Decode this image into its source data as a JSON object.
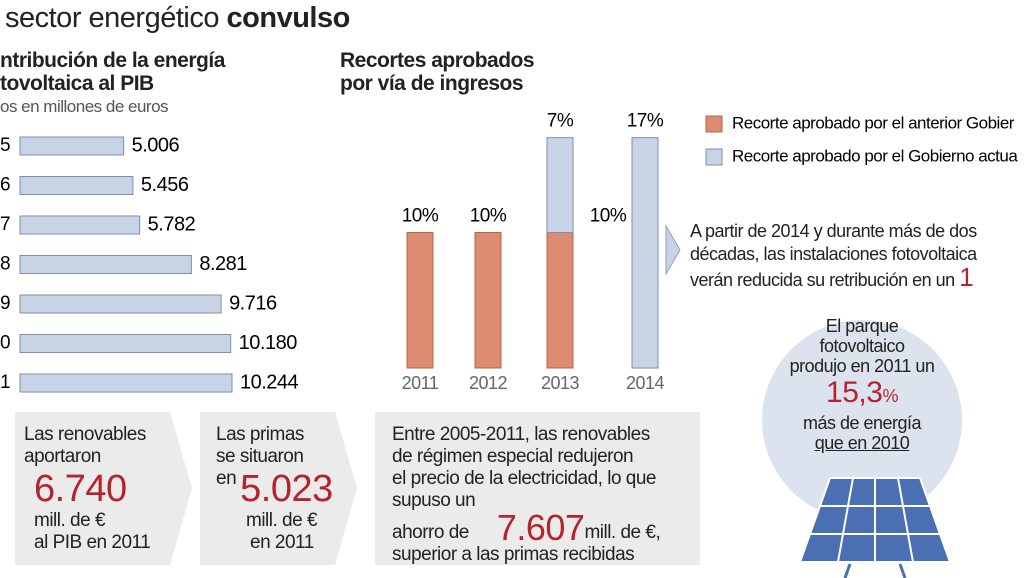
{
  "header": {
    "title": "sector energético",
    "title_bold": "convulso"
  },
  "chart_data": [
    {
      "type": "hbar",
      "title_lines": [
        "ntribución de la energía",
        "tovoltaica al PIB"
      ],
      "subtitle": "os en millones de euros",
      "categories": [
        "5",
        "6",
        "7",
        "8",
        "9",
        "0",
        "1"
      ],
      "values": [
        5006,
        5456,
        5782,
        8281,
        9716,
        10180,
        10244
      ],
      "value_labels": [
        "5.006",
        "5.456",
        "5.782",
        "8.281",
        "9.716",
        "10.180",
        "10.244"
      ],
      "color": "#c9d3e6"
    },
    {
      "type": "stacked-bar",
      "title_lines": [
        "Recortes aprobados",
        "por vía de ingresos"
      ],
      "categories": [
        "2011",
        "2012",
        "2013",
        "2014"
      ],
      "series": [
        {
          "name": "Recorte aprobado por el anterior Gobier",
          "color": "#dc8a70",
          "values": [
            10,
            10,
            10,
            null
          ],
          "value_labels": [
            "10%",
            "10%",
            "10%",
            null
          ]
        },
        {
          "name": "Recorte aprobado por el Gobierno actua",
          "color": "#c9d3e6",
          "values": [
            null,
            null,
            7,
            17
          ],
          "value_labels": [
            null,
            null,
            "7%",
            "17%"
          ]
        }
      ]
    }
  ],
  "note": {
    "lines": [
      "A partir de 2014 y durante más de dos",
      "décadas, las instalaciones fotovoltaica",
      "verán reducida su retribución en un"
    ],
    "highlight": "1"
  },
  "circle": {
    "lines_top": [
      "El parque",
      "fotovoltaico",
      "produjo en 2011 un"
    ],
    "number": "15,3",
    "unit": "%",
    "lines_bottom": [
      "más de energía",
      "que en 2010"
    ]
  },
  "boxes": [
    {
      "lines": [
        "Las renovables",
        "aportaron"
      ],
      "number": "6.740",
      "after": [
        "mill. de €",
        "al PIB en 2011"
      ]
    },
    {
      "lines": [
        "Las primas",
        "se situaron",
        "en"
      ],
      "number": "5.023",
      "after": [
        "mill. de €",
        "en 2011"
      ]
    },
    {
      "lines": [
        "Entre 2005-2011, las renovables",
        "de régimen especial redujeron",
        "el precio de la electricidad, lo que",
        "supuso un",
        "ahorro de"
      ],
      "number": "7.607",
      "after": [
        "mill. de €,",
        "superior a las primas recibidas"
      ]
    }
  ]
}
